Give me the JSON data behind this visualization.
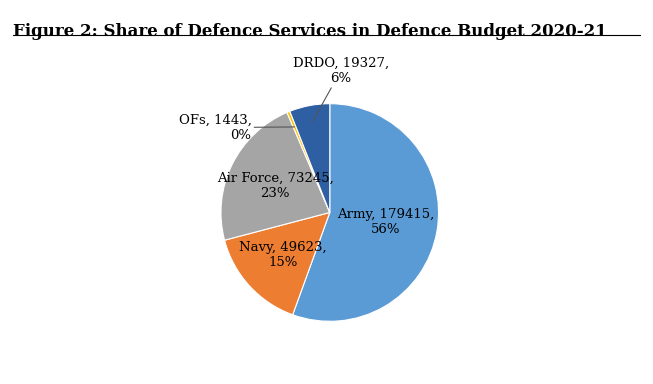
{
  "title": "Figure 2: Share of Defence Services in Defence Budget 2020-21",
  "labels": [
    "Army",
    "Navy",
    "Air Force",
    "OFs",
    "DRDO"
  ],
  "values": [
    179415,
    49623,
    73245,
    1443,
    19327
  ],
  "percentages": [
    "56%",
    "15%",
    "23%",
    "0%",
    "6%"
  ],
  "colors": [
    "#5B9BD5",
    "#ED7D31",
    "#A5A5A5",
    "#FFC000",
    "#2E5FA3"
  ],
  "startangle": 90,
  "background_color": "#FFFFFF",
  "title_fontsize": 12,
  "label_fontsize": 9.5
}
